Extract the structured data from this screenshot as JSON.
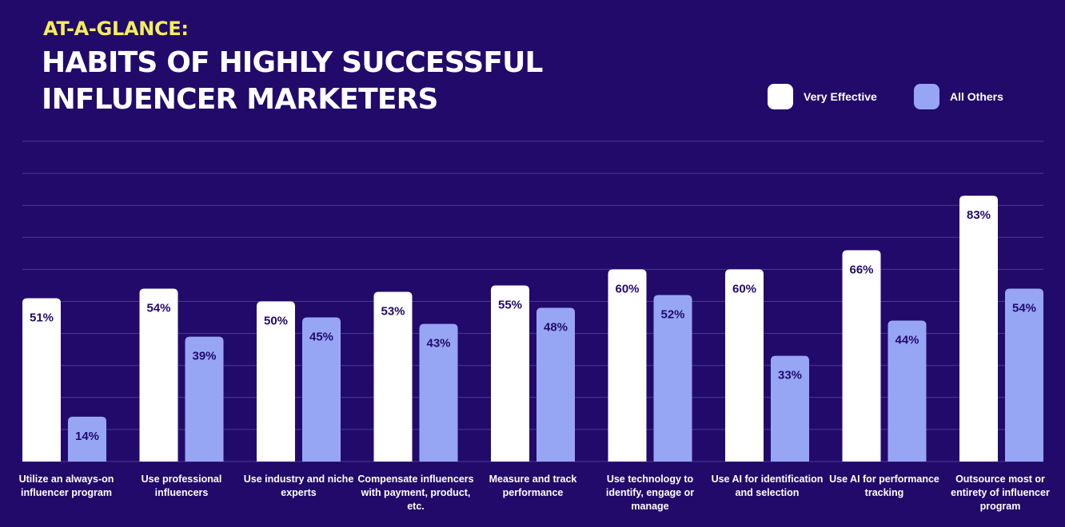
{
  "header": {
    "kicker": "AT-A-GLANCE:",
    "title": "HABITS OF HIGHLY SUCCESSFUL INFLUENCER MARKETERS"
  },
  "legend": {
    "items": [
      {
        "label": "Very Effective",
        "color": "#ffffff"
      },
      {
        "label": "All Others",
        "color": "#97a6f4"
      }
    ]
  },
  "colors": {
    "background": "#220a6b",
    "kicker": "#f3ee58",
    "gridline": "#4a3a8f",
    "bar_label": "#220a6b"
  },
  "chart_data": {
    "type": "bar",
    "categories": [
      "Utilize an always-on influencer program",
      "Use professional influencers",
      "Use industry and niche experts",
      "Compensate influencers with payment, product, etc.",
      "Measure and track performance",
      "Use technology to identify, engage or manage",
      "Use AI for identification and selection",
      "Use AI for performance tracking",
      "Outsource most or entirety of influencer program"
    ],
    "series": [
      {
        "name": "Very Effective",
        "color": "#ffffff",
        "values": [
          51,
          54,
          50,
          53,
          55,
          60,
          60,
          66,
          83
        ],
        "labels": [
          "51%",
          "54%",
          "50%",
          "53%",
          "55%",
          "60%",
          "60%",
          "66%",
          "83%"
        ]
      },
      {
        "name": "All Others",
        "color": "#97a6f4",
        "values": [
          14,
          39,
          45,
          43,
          48,
          52,
          33,
          44,
          54
        ],
        "labels": [
          "14%",
          "39%",
          "45%",
          "43%",
          "48%",
          "52%",
          "33%",
          "44%",
          "54%"
        ]
      }
    ],
    "ylim": [
      0,
      100
    ],
    "grid": true,
    "legend_position": "top-right",
    "data_labels": "inside-top"
  }
}
